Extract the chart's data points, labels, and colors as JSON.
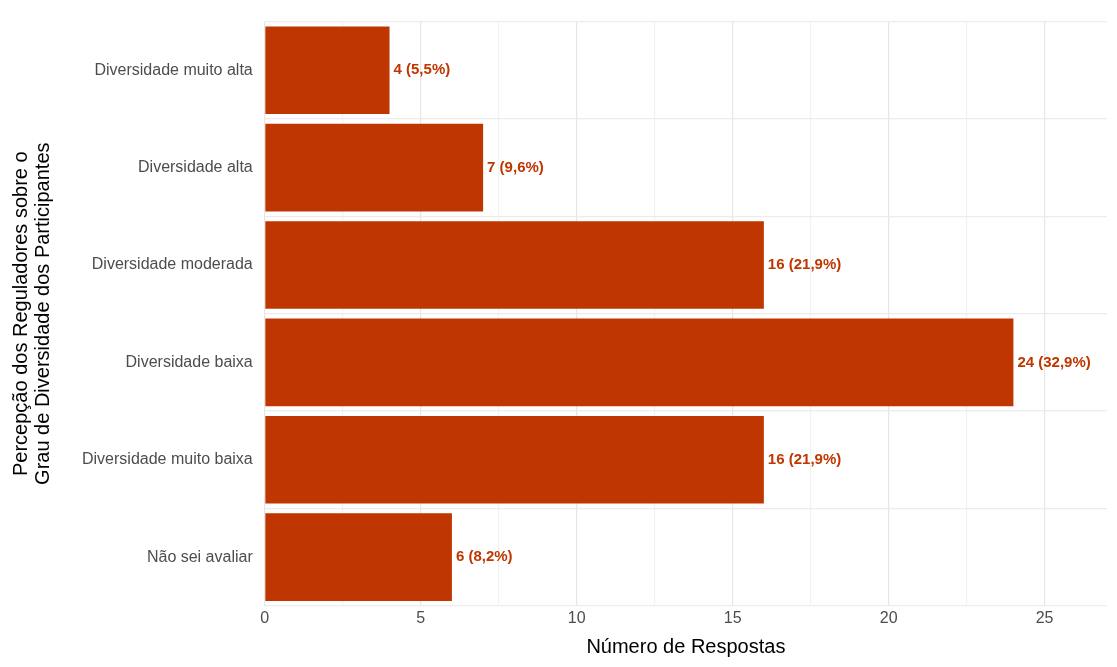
{
  "chart_data": {
    "type": "bar",
    "orientation": "horizontal",
    "categories": [
      "Diversidade muito alta",
      "Diversidade alta",
      "Diversidade moderada",
      "Diversidade baixa",
      "Diversidade muito baixa",
      "Não sei avaliar"
    ],
    "values": [
      4,
      7,
      16,
      24,
      16,
      6
    ],
    "value_labels": [
      "4 (5,5%)",
      "7 (9,6%)",
      "16 (21,9%)",
      "24 (32,9%)",
      "16 (21,9%)",
      "6 (8,2%)"
    ],
    "color": "#bf3600",
    "xlabel": "Número de Respostas",
    "ylabel": "Percepção dos Reguladores sobre o\nGrau de Diversidade dos Participantes",
    "xlim": [
      0,
      27
    ],
    "xticks": [
      0,
      {
        "value": 2.5,
        "label": null
      },
      5,
      {
        "value": 7.5,
        "label": null
      },
      10,
      {
        "value": 12.5,
        "label": null
      },
      15,
      {
        "value": 17.5,
        "label": null
      },
      20,
      {
        "value": 22.5,
        "label": null
      },
      25
    ],
    "grid": true
  }
}
